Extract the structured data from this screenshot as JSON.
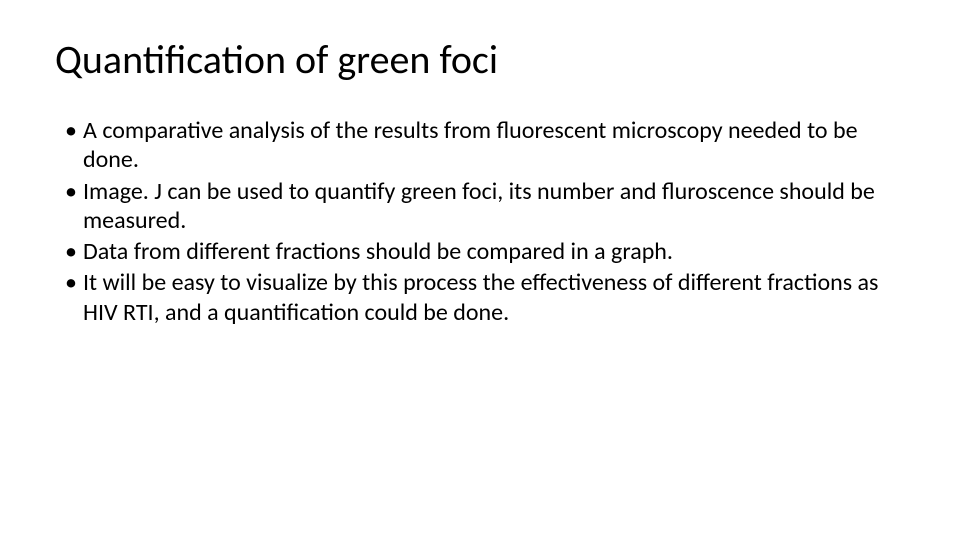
{
  "background_color": "#ffffff",
  "text_color": "#000000",
  "font_family": "Calibri, 'Segoe UI', Arial, sans-serif",
  "title": {
    "text": "Quantification of green foci",
    "fontsize": 40,
    "fontweight": 400
  },
  "bullets": {
    "fontsize": 24,
    "items": [
      "A comparative analysis of the results from fluorescent microscopy needed to be done.",
      "Image. J can be used to quantify green foci, its number and fluroscence should be measured.",
      "Data from different fractions should be compared in a graph.",
      "It will be easy to visualize by this process the effectiveness of different fractions as HIV RTI, and a quantification could be done."
    ]
  }
}
